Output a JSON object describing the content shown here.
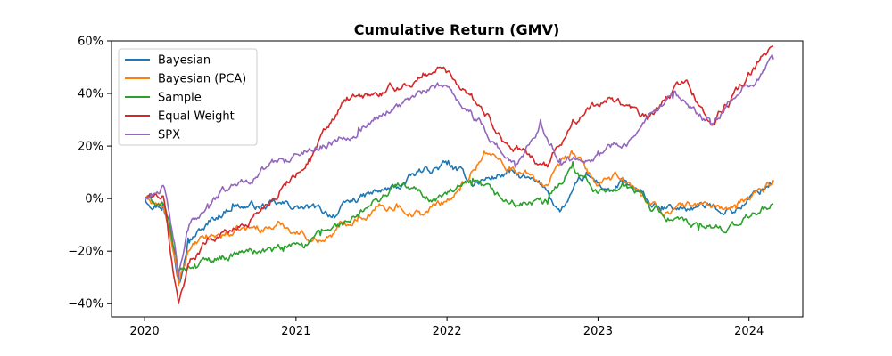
{
  "chart_data": {
    "type": "line",
    "title": "Cumulative Return (GMV)",
    "xlabel": "",
    "ylabel": "",
    "x_ticks": [
      "2020",
      "2021",
      "2022",
      "2023",
      "2024"
    ],
    "y_ticks": [
      "−40%",
      "−20%",
      "0%",
      "20%",
      "40%",
      "60%"
    ],
    "ylim": [
      -45,
      60
    ],
    "xlim": [
      "2019-10-13",
      "2024-05-10"
    ],
    "legend_position": "top-left",
    "grid": false,
    "series": [
      {
        "name": "Bayesian",
        "color": "#1f77b4",
        "points": [
          [
            "2020-01-02",
            0
          ],
          [
            "2020-02-15",
            -2
          ],
          [
            "2020-03-10",
            -18
          ],
          [
            "2020-03-23",
            -30
          ],
          [
            "2020-04-15",
            -15
          ],
          [
            "2020-06-01",
            -10
          ],
          [
            "2020-08-01",
            -2
          ],
          [
            "2020-10-01",
            -3
          ],
          [
            "2021-01-01",
            -3
          ],
          [
            "2021-04-01",
            -6
          ],
          [
            "2021-06-01",
            0
          ],
          [
            "2021-09-01",
            4
          ],
          [
            "2021-11-01",
            10
          ],
          [
            "2022-01-01",
            13
          ],
          [
            "2022-03-01",
            6
          ],
          [
            "2022-06-01",
            10
          ],
          [
            "2022-09-01",
            3
          ],
          [
            "2022-10-01",
            -5
          ],
          [
            "2022-12-01",
            8
          ],
          [
            "2023-02-01",
            3
          ],
          [
            "2023-03-01",
            6
          ],
          [
            "2023-06-01",
            -5
          ],
          [
            "2023-09-01",
            -3
          ],
          [
            "2023-12-01",
            -4
          ],
          [
            "2024-02-29",
            7
          ]
        ]
      },
      {
        "name": "Bayesian (PCA)",
        "color": "#ff7f0e",
        "points": [
          [
            "2020-01-02",
            0
          ],
          [
            "2020-02-15",
            -3
          ],
          [
            "2020-03-10",
            -20
          ],
          [
            "2020-03-23",
            -33
          ],
          [
            "2020-04-15",
            -20
          ],
          [
            "2020-06-01",
            -15
          ],
          [
            "2020-09-01",
            -12
          ],
          [
            "2020-12-01",
            -10
          ],
          [
            "2021-03-01",
            -16
          ],
          [
            "2021-06-01",
            -6
          ],
          [
            "2021-09-01",
            -2
          ],
          [
            "2021-11-01",
            -6
          ],
          [
            "2022-02-01",
            3
          ],
          [
            "2022-04-01",
            18
          ],
          [
            "2022-06-01",
            12
          ],
          [
            "2022-09-01",
            5
          ],
          [
            "2022-11-01",
            17
          ],
          [
            "2023-01-01",
            5
          ],
          [
            "2023-03-01",
            8
          ],
          [
            "2023-06-01",
            -5
          ],
          [
            "2023-09-01",
            -2
          ],
          [
            "2023-12-01",
            -4
          ],
          [
            "2024-02-29",
            7
          ]
        ]
      },
      {
        "name": "Sample",
        "color": "#2ca02c",
        "points": [
          [
            "2020-01-02",
            0
          ],
          [
            "2020-02-15",
            -2
          ],
          [
            "2020-03-10",
            -18
          ],
          [
            "2020-03-23",
            -28
          ],
          [
            "2020-05-01",
            -25
          ],
          [
            "2020-07-01",
            -22
          ],
          [
            "2020-09-01",
            -20
          ],
          [
            "2020-12-01",
            -20
          ],
          [
            "2021-01-15",
            -17
          ],
          [
            "2021-03-01",
            -14
          ],
          [
            "2021-06-01",
            -7
          ],
          [
            "2021-09-01",
            5
          ],
          [
            "2021-12-01",
            0
          ],
          [
            "2022-03-01",
            5
          ],
          [
            "2022-06-01",
            -2
          ],
          [
            "2022-09-01",
            -2
          ],
          [
            "2022-11-01",
            14
          ],
          [
            "2023-01-01",
            2
          ],
          [
            "2023-03-01",
            6
          ],
          [
            "2023-06-01",
            -5
          ],
          [
            "2023-09-01",
            -12
          ],
          [
            "2023-12-01",
            -10
          ],
          [
            "2024-02-29",
            -2
          ]
        ]
      },
      {
        "name": "Equal Weight",
        "color": "#d62728",
        "points": [
          [
            "2020-01-02",
            0
          ],
          [
            "2020-02-15",
            1
          ],
          [
            "2020-03-10",
            -28
          ],
          [
            "2020-03-23",
            -40
          ],
          [
            "2020-04-15",
            -25
          ],
          [
            "2020-06-01",
            -15
          ],
          [
            "2020-09-01",
            -10
          ],
          [
            "2020-12-01",
            5
          ],
          [
            "2021-02-01",
            15
          ],
          [
            "2021-05-01",
            37
          ],
          [
            "2021-08-01",
            40
          ],
          [
            "2021-11-01",
            46
          ],
          [
            "2021-12-15",
            50
          ],
          [
            "2022-03-01",
            40
          ],
          [
            "2022-06-01",
            20
          ],
          [
            "2022-09-01",
            12
          ],
          [
            "2022-11-01",
            30
          ],
          [
            "2023-02-01",
            38
          ],
          [
            "2023-05-01",
            30
          ],
          [
            "2023-08-01",
            45
          ],
          [
            "2023-10-01",
            28
          ],
          [
            "2024-02-29",
            58
          ]
        ]
      },
      {
        "name": "SPX",
        "color": "#9467bd",
        "points": [
          [
            "2020-01-02",
            0
          ],
          [
            "2020-02-15",
            5
          ],
          [
            "2020-03-10",
            -15
          ],
          [
            "2020-03-23",
            -30
          ],
          [
            "2020-04-15",
            -12
          ],
          [
            "2020-06-01",
            -2
          ],
          [
            "2020-08-01",
            5
          ],
          [
            "2020-12-01",
            15
          ],
          [
            "2021-03-01",
            20
          ],
          [
            "2021-06-01",
            27
          ],
          [
            "2021-09-01",
            36
          ],
          [
            "2021-12-30",
            43
          ],
          [
            "2022-03-01",
            33
          ],
          [
            "2022-06-15",
            12
          ],
          [
            "2022-08-15",
            30
          ],
          [
            "2022-10-01",
            15
          ],
          [
            "2023-01-01",
            18
          ],
          [
            "2023-04-01",
            24
          ],
          [
            "2023-07-01",
            38
          ],
          [
            "2023-10-01",
            28
          ],
          [
            "2024-02-29",
            53
          ]
        ]
      }
    ]
  }
}
